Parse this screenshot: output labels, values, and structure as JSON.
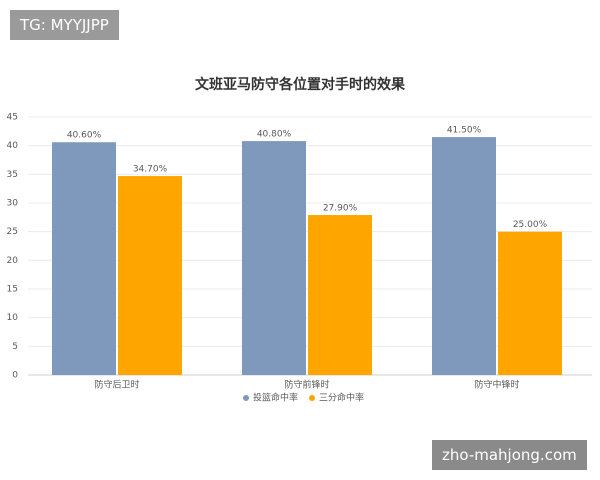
{
  "watermark_top": "TG: MYYJJPP",
  "watermark_bottom": "zho-mahjong.com",
  "chart_data": {
    "type": "bar",
    "title": "文班亚马防守各位置对手时的效果",
    "categories": [
      "防守后卫时",
      "防守前锋时",
      "防守中锋时"
    ],
    "series": [
      {
        "name": "投篮命中率",
        "color": "#7f99bd",
        "values": [
          40.6,
          40.8,
          41.5
        ],
        "value_labels": [
          "40.60%",
          "40.80%",
          "41.50%"
        ]
      },
      {
        "name": "三分命中率",
        "color": "#ffa500",
        "values": [
          34.7,
          27.9,
          25.0
        ],
        "value_labels": [
          "34.70%",
          "27.90%",
          "25.00%"
        ]
      }
    ],
    "ylim": [
      0,
      45
    ],
    "yticks": [
      0,
      5,
      10,
      15,
      20,
      25,
      30,
      35,
      40,
      45
    ],
    "grid": true,
    "legend": "bottom"
  }
}
